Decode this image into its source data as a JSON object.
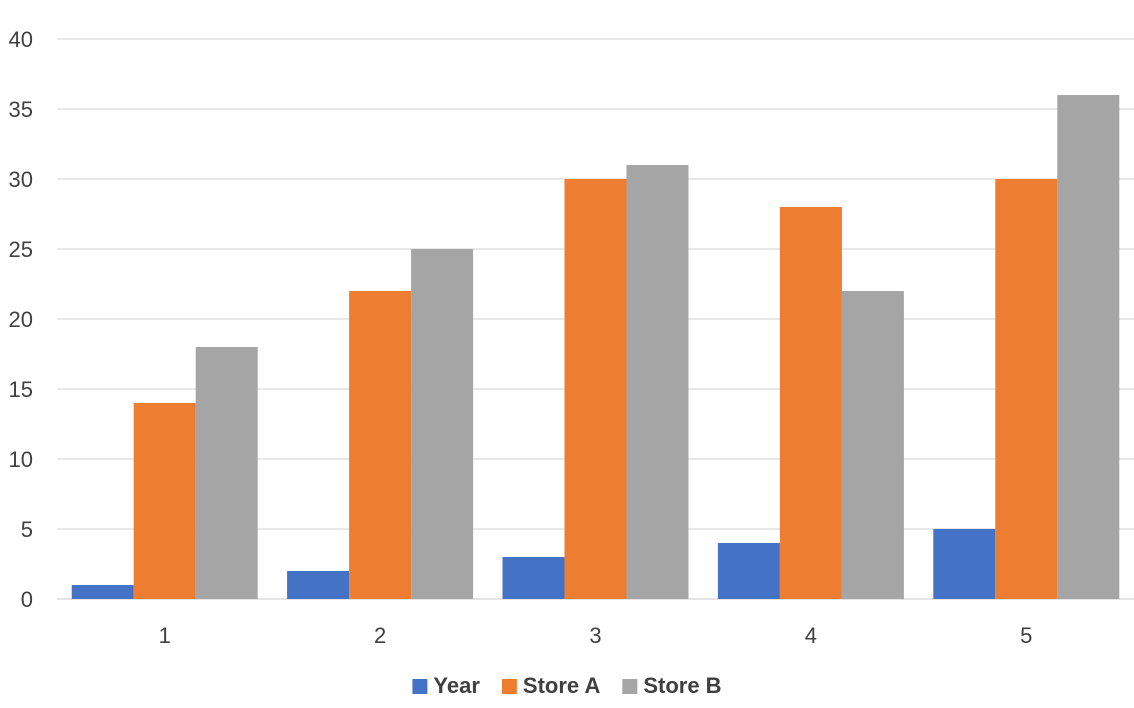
{
  "chart_data": {
    "type": "bar",
    "title": "",
    "xlabel": "",
    "ylabel": "",
    "categories": [
      "1",
      "2",
      "3",
      "4",
      "5"
    ],
    "series": [
      {
        "name": "Year",
        "color": "#4472C4",
        "values": [
          1,
          2,
          3,
          4,
          5
        ]
      },
      {
        "name": "Store A",
        "color": "#ED7D31",
        "values": [
          14,
          22,
          30,
          28,
          30
        ]
      },
      {
        "name": "Store B",
        "color": "#A5A5A5",
        "values": [
          18,
          25,
          31,
          22,
          36
        ]
      }
    ],
    "ylim": [
      0,
      40
    ],
    "yticks": [
      "0",
      "5",
      "10",
      "15",
      "20",
      "25",
      "30",
      "35",
      "40"
    ],
    "grid": true,
    "grid_color": "#D9D9D9",
    "legend_position": "bottom"
  }
}
